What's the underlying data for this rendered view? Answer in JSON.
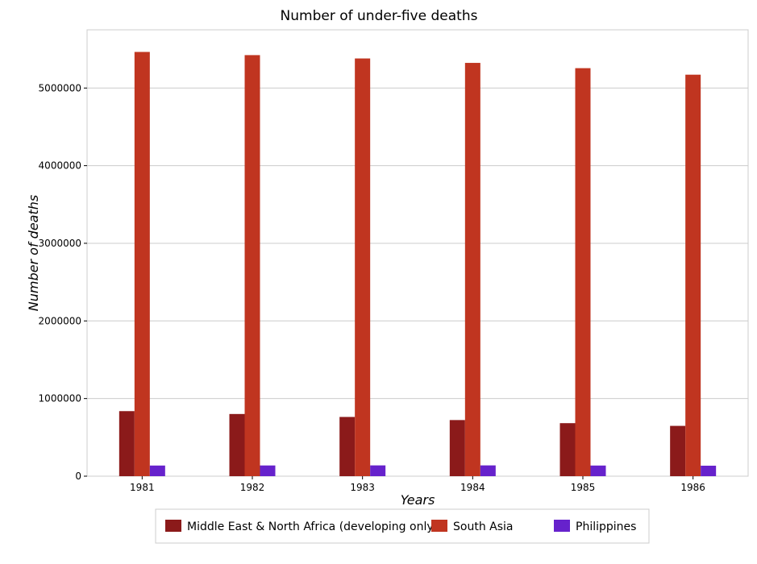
{
  "chart_data": {
    "type": "bar",
    "title": "Number of under-five deaths",
    "xlabel": "Years",
    "ylabel": "Number of deaths",
    "categories": [
      "1981",
      "1982",
      "1983",
      "1984",
      "1985",
      "1986"
    ],
    "ylim": [
      0,
      5750000
    ],
    "yticks": [
      0,
      1000000,
      2000000,
      3000000,
      4000000,
      5000000
    ],
    "ytick_labels": [
      "0",
      "1000000",
      "2000000",
      "3000000",
      "4000000",
      "5000000"
    ],
    "grid": true,
    "legend_position": "bottom",
    "series": [
      {
        "name": "Middle East & North Africa (developing only)",
        "color": "#8b1a1a",
        "values": [
          838000,
          801000,
          763000,
          723000,
          683000,
          648000
        ]
      },
      {
        "name": "South Asia",
        "color": "#c03520",
        "values": [
          5465000,
          5424000,
          5381000,
          5324000,
          5256000,
          5172000
        ]
      },
      {
        "name": "Philippines",
        "color": "#6622cc",
        "values": [
          137000,
          138000,
          139000,
          139000,
          137000,
          135000
        ]
      }
    ]
  }
}
